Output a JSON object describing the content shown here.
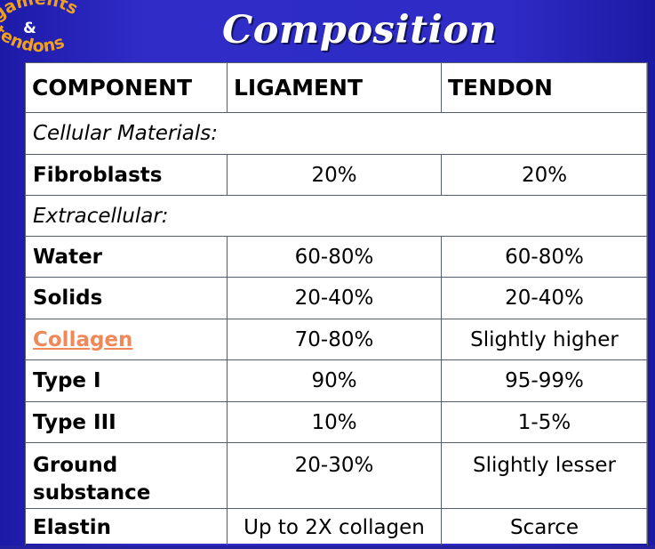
{
  "logo": {
    "arc_top": "igaments",
    "ampersand": "&",
    "arc_bottom": "tendons"
  },
  "title": "Composition",
  "table": {
    "headers": [
      "COMPONENT",
      "LIGAMENT",
      "TENDON"
    ],
    "rows": [
      {
        "kind": "section",
        "label": "Cellular Materials:"
      },
      {
        "kind": "data",
        "label": "Fibroblasts",
        "ligament": "20%",
        "tendon": "20%"
      },
      {
        "kind": "section",
        "label": "Extracellular:"
      },
      {
        "kind": "data",
        "label": "Water",
        "ligament": "60-80%",
        "tendon": "60-80%"
      },
      {
        "kind": "data",
        "label": "Solids",
        "ligament": "20-40%",
        "tendon": "20-40%"
      },
      {
        "kind": "data",
        "label": "Collagen",
        "ligament": "70-80%",
        "tendon": "Slightly higher",
        "link": true
      },
      {
        "kind": "data",
        "label": "Type I",
        "ligament": "90%",
        "tendon": "95-99%"
      },
      {
        "kind": "data",
        "label": "Type III",
        "ligament": "10%",
        "tendon": "1-5%"
      },
      {
        "kind": "data",
        "label": "Ground substance",
        "ligament": "20-30%",
        "tendon": "Slightly lesser"
      },
      {
        "kind": "data",
        "label": "Elastin",
        "ligament": "Up to 2X collagen",
        "tendon": "Scarce"
      }
    ]
  },
  "colors": {
    "background": "#2e2bc6",
    "link": "#f0895a",
    "logo_text": "#f0a020"
  }
}
